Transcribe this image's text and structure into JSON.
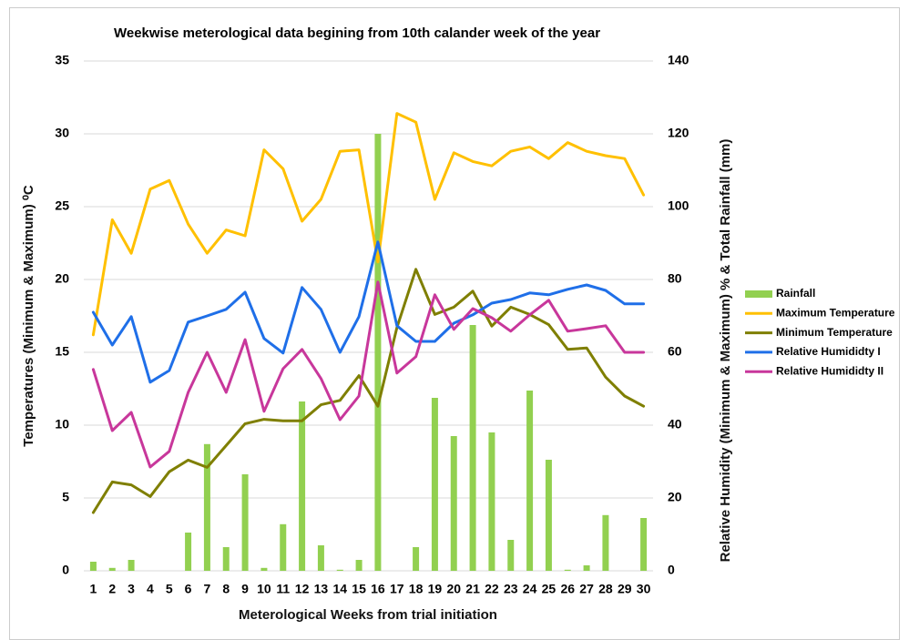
{
  "chart_data": {
    "type": "bar-line",
    "title": "Weekwise meterological data begining from 10th calander week of the year",
    "xlabel": "Meterological Weeks from trial initiation",
    "ylabel": "Temperatures (Minimum & Maximum) ⁰C",
    "y2label": "Relative Humidity (Minimum & Maximum) % & Total Rainfall (mm)",
    "categories": [
      "1",
      "2",
      "3",
      "4",
      "5",
      "6",
      "7",
      "8",
      "9",
      "10",
      "11",
      "12",
      "13",
      "14",
      "15",
      "16",
      "17",
      "18",
      "19",
      "20",
      "21",
      "22",
      "23",
      "24",
      "25",
      "26",
      "27",
      "28",
      "29",
      "30"
    ],
    "ylim": [
      0,
      35
    ],
    "yticks": [
      0,
      5,
      10,
      15,
      20,
      25,
      30,
      35
    ],
    "y2lim": [
      0,
      140
    ],
    "y2ticks": [
      0,
      20,
      40,
      60,
      80,
      100,
      120,
      140
    ],
    "grid": true,
    "legend": "right",
    "series": [
      {
        "name": "Rainfall",
        "type": "bar",
        "axis": "y2",
        "color": "#92d050",
        "values": [
          2.5,
          0.8,
          3,
          0,
          0,
          10.5,
          34.8,
          6.5,
          26.5,
          0.8,
          12.8,
          46.5,
          7,
          0.3,
          3,
          120,
          0,
          6.5,
          47.5,
          37,
          67.5,
          38,
          8.5,
          49.5,
          30.5,
          0.3,
          1.5,
          15.3,
          0,
          14.5
        ]
      },
      {
        "name": "Maximum Temperature",
        "type": "line",
        "color": "#ffc000",
        "values": [
          16.2,
          24.1,
          21.8,
          26.2,
          26.8,
          23.8,
          21.8,
          23.4,
          23,
          28.9,
          27.6,
          24,
          25.5,
          28.8,
          28.9,
          21.2,
          31.4,
          30.8,
          25.5,
          28.7,
          28.1,
          27.8,
          28.8,
          29.1,
          28.3,
          29.4,
          28.8,
          28.5,
          28.3,
          25.8
        ]
      },
      {
        "name": "Minimum Temperature",
        "type": "line",
        "color": "#7f7f00",
        "values": [
          4,
          6.1,
          5.9,
          5.1,
          6.8,
          7.6,
          7.1,
          8.6,
          10.1,
          10.4,
          10.3,
          10.3,
          11.4,
          11.7,
          13.4,
          11.3,
          16.7,
          20.7,
          17.6,
          18.1,
          19.2,
          16.8,
          18.1,
          17.6,
          16.9,
          15.2,
          15.3,
          13.3,
          12,
          11.3
        ]
      },
      {
        "name": "Relative Humididty I",
        "type": "line",
        "axis": "y2",
        "color": "#1f6fe8",
        "values": [
          71,
          62,
          69.8,
          51.8,
          55,
          68.3,
          70,
          71.8,
          76.5,
          63.8,
          59.8,
          77.8,
          71.8,
          60,
          69.8,
          90.3,
          67.3,
          63,
          63,
          68,
          70.3,
          73.5,
          74.5,
          76.3,
          75.8,
          77.3,
          78.5,
          77,
          73.3,
          73.3
        ]
      },
      {
        "name": "Relative Humididty II",
        "type": "line",
        "axis": "y2",
        "color": "#c8379b",
        "values": [
          55.3,
          38.5,
          43.5,
          28.5,
          32.8,
          49,
          60,
          49,
          63.5,
          43.8,
          55.5,
          60.8,
          52.8,
          41.5,
          48,
          79.3,
          54.3,
          58.8,
          75.8,
          66.3,
          72,
          69.5,
          65.8,
          70.3,
          74.3,
          65.8,
          66.5,
          67.3,
          60,
          60
        ]
      }
    ]
  }
}
